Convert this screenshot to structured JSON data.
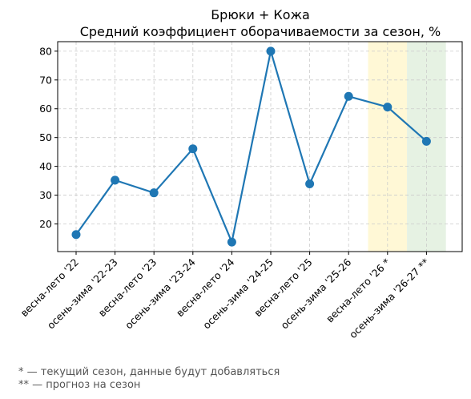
{
  "chart_data": {
    "type": "line",
    "title": "Брюки + Кожа",
    "subtitle": "Средний коэффициент оборачиваемости за сезон, %",
    "categories": [
      "весна-лето '22",
      "осень-зима '22-23",
      "весна-лето '23",
      "осень-зима '23-24",
      "весна-лето '24",
      "осень-зима '24-25",
      "весна-лето '25",
      "осень-зима '25-26",
      "весна-лето '26 *",
      "осень-зима '26-27 **"
    ],
    "values": [
      16.3,
      35.2,
      30.8,
      46.1,
      13.7,
      80.0,
      33.9,
      64.3,
      60.6,
      48.7
    ],
    "ylim": [
      10.4,
      83.3
    ],
    "yticks": [
      20,
      30,
      40,
      50,
      60,
      70,
      80
    ],
    "grid": true,
    "highlights": [
      {
        "category_index": 8,
        "color": "#fff8d6",
        "label": "current season"
      },
      {
        "category_index": 9,
        "color": "#e6f2e3",
        "label": "forecast"
      }
    ],
    "line_color": "#1f77b4"
  },
  "footnotes": {
    "current": "* — текущий сезон, данные будут добавляться",
    "forecast": "** — прогноз на сезон"
  }
}
